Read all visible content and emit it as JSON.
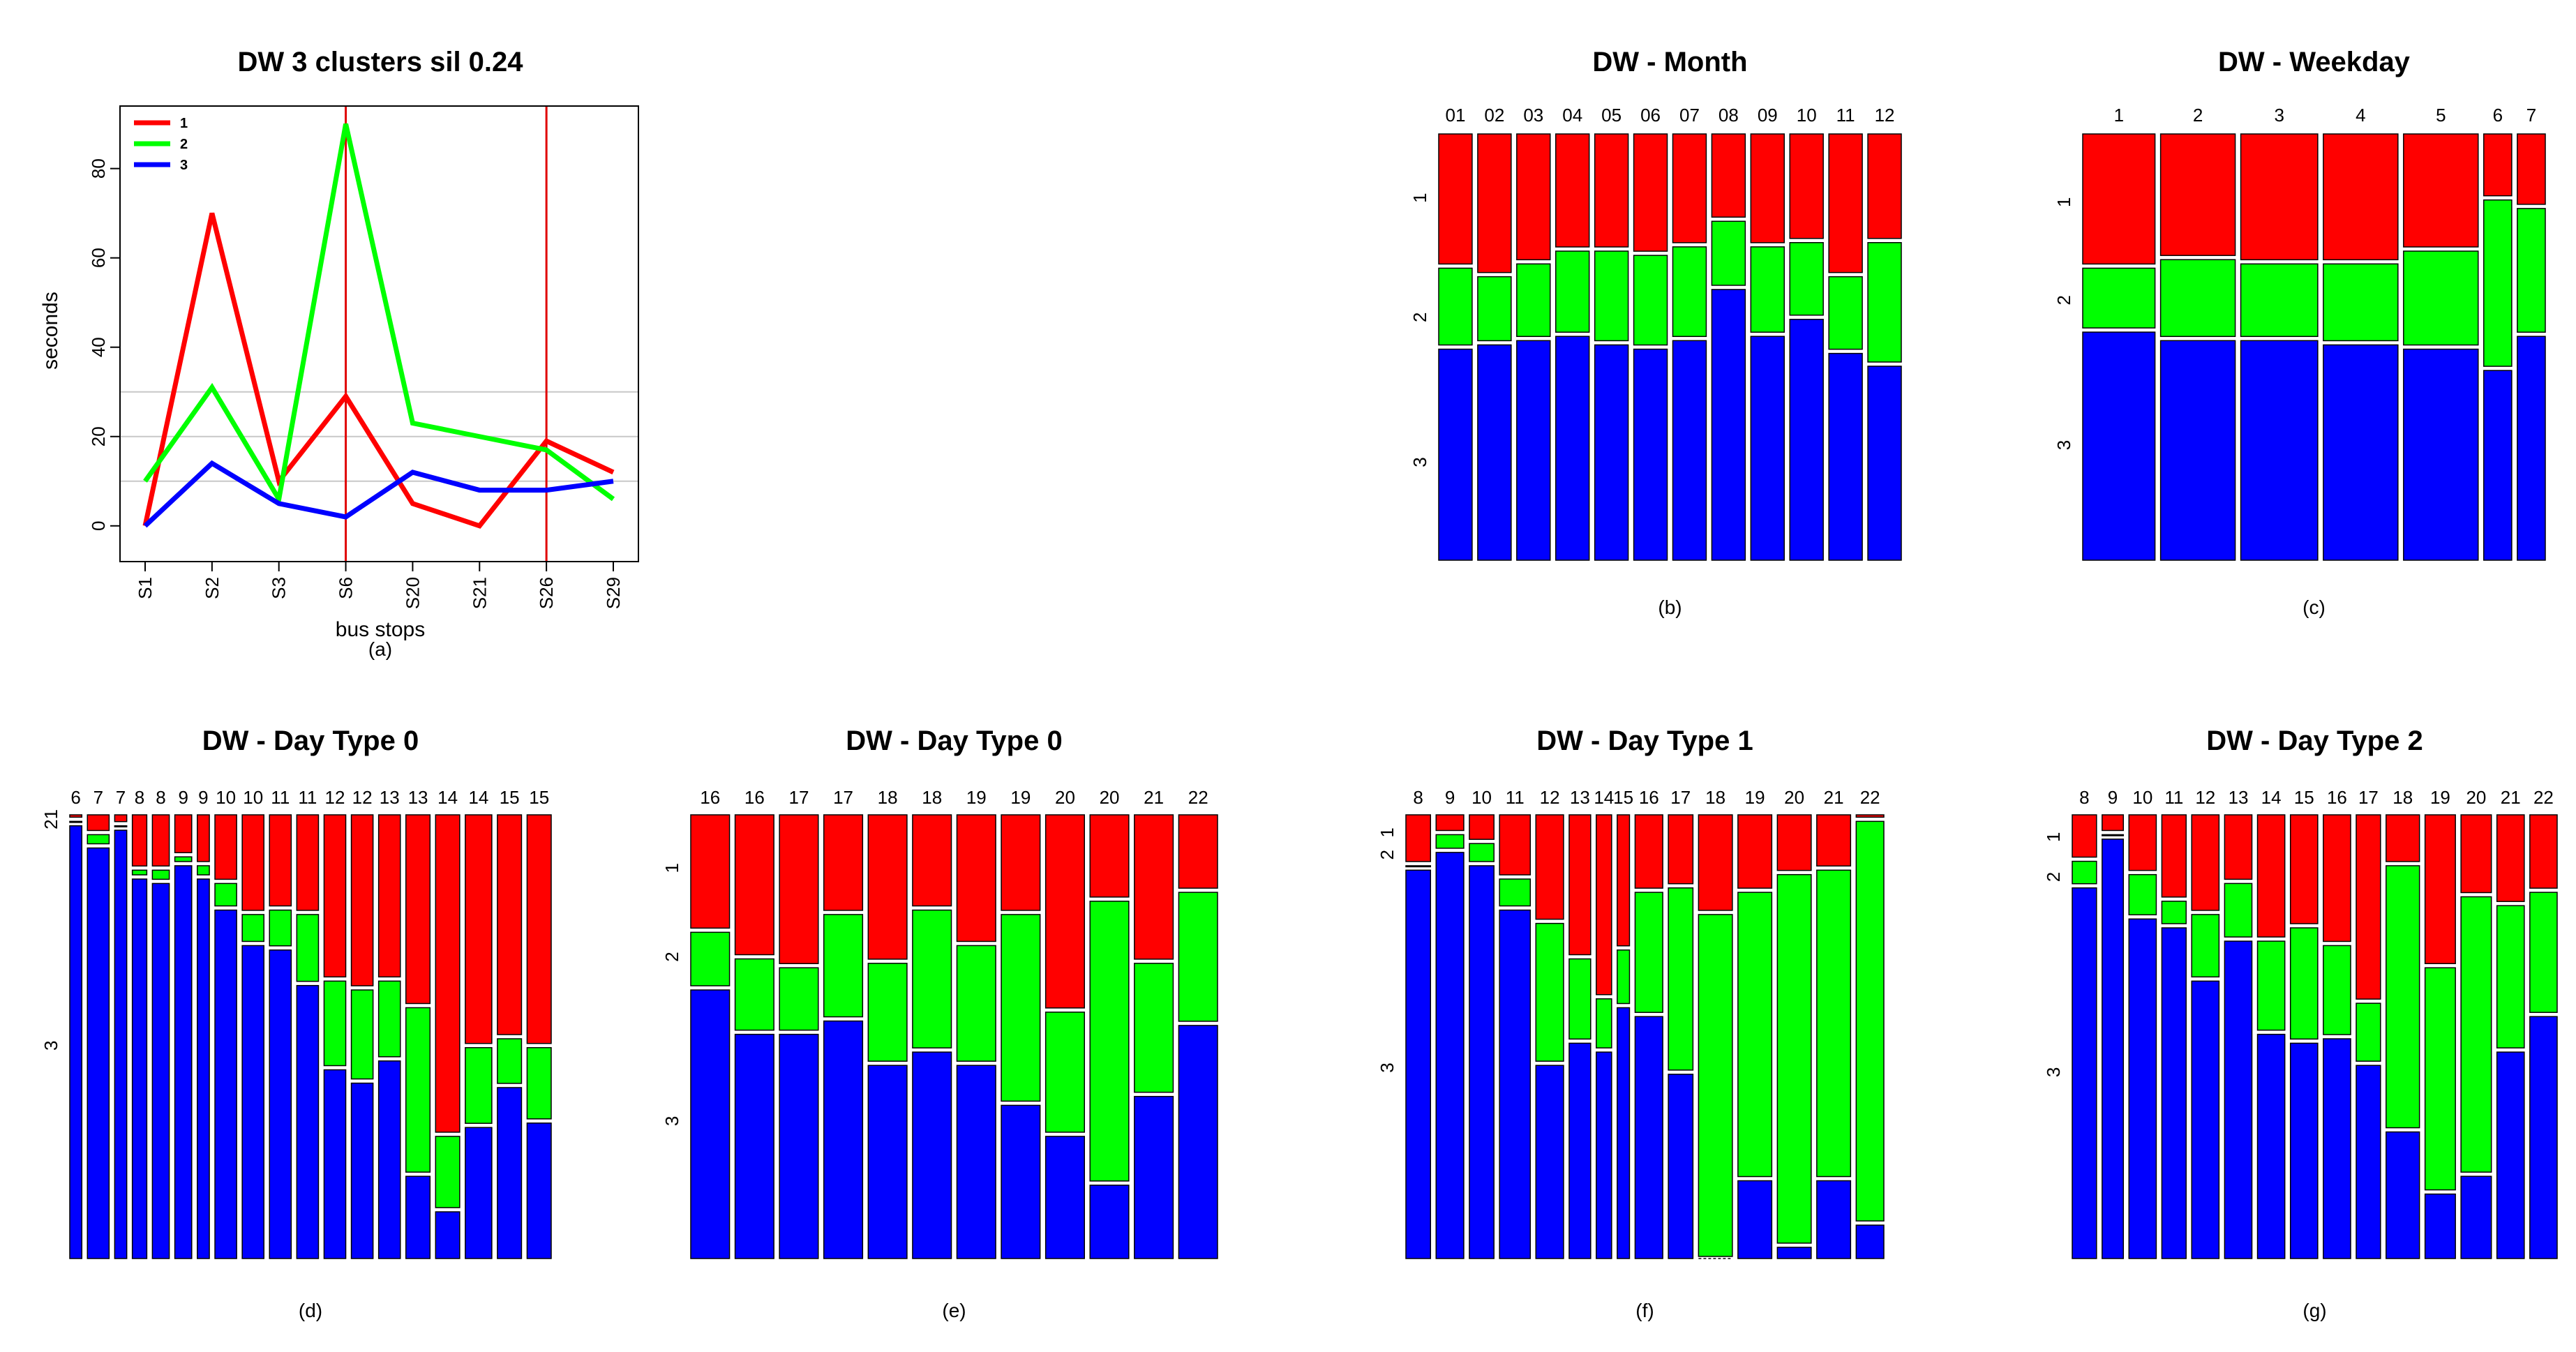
{
  "colors": {
    "c1": "#ff0000",
    "c2": "#00ff00",
    "c3": "#0000ff",
    "grid": "#c8c8c8",
    "vline": "#e00000"
  },
  "line_panel": {
    "title": "DW 3 clusters sil 0.24",
    "ylabel": "seconds",
    "xlabel": "bus stops",
    "caption": "(a)",
    "legend": [
      "1",
      "2",
      "3"
    ]
  },
  "chart_data": [
    {
      "type": "line",
      "title": "DW 3 clusters sil 0.24",
      "xlabel": "bus stops",
      "ylabel": "seconds",
      "categories": [
        "S1",
        "S2",
        "S3",
        "S6",
        "S20",
        "S21",
        "S26",
        "S29"
      ],
      "ylim": [
        -8,
        94
      ],
      "yticks": [
        0,
        20,
        40,
        60,
        80
      ],
      "hlines": [
        10,
        20,
        30
      ],
      "vlines": [
        "S6",
        "S26"
      ],
      "series": [
        {
          "name": "1",
          "values": [
            0,
            70,
            10,
            29,
            5,
            0,
            19,
            12
          ]
        },
        {
          "name": "2",
          "values": [
            10,
            31,
            6,
            90,
            23,
            20,
            17,
            6
          ]
        },
        {
          "name": "3",
          "values": [
            0,
            14,
            5,
            2,
            12,
            8,
            8,
            10
          ]
        }
      ]
    },
    {
      "type": "mosaic",
      "title": "DW - Month",
      "caption": "(b)",
      "categories": [
        "01",
        "02",
        "03",
        "04",
        "05",
        "06",
        "07",
        "08",
        "09",
        "10",
        "11",
        "12"
      ],
      "widths": [
        1,
        1,
        1,
        1,
        1,
        1,
        1,
        1,
        1,
        1,
        1,
        1
      ],
      "series": [
        {
          "name": "1",
          "values": [
            0.31,
            0.33,
            0.3,
            0.27,
            0.27,
            0.28,
            0.26,
            0.2,
            0.26,
            0.25,
            0.33,
            0.25
          ]
        },
        {
          "name": "2",
          "values": [
            0.19,
            0.16,
            0.18,
            0.2,
            0.22,
            0.22,
            0.22,
            0.16,
            0.21,
            0.18,
            0.18,
            0.29
          ]
        },
        {
          "name": "3",
          "values": [
            0.5,
            0.51,
            0.52,
            0.53,
            0.51,
            0.5,
            0.52,
            0.64,
            0.53,
            0.57,
            0.49,
            0.46
          ]
        }
      ],
      "ylabels": [
        {
          "text": "1",
          "pos": 0.85
        },
        {
          "text": "2",
          "pos": 0.57
        },
        {
          "text": "3",
          "pos": 0.23
        }
      ]
    },
    {
      "type": "mosaic",
      "title": "DW - Weekday",
      "caption": "(c)",
      "categories": [
        "1",
        "2",
        "3",
        "4",
        "5",
        "6",
        "7"
      ],
      "widths": [
        1.55,
        1.6,
        1.65,
        1.6,
        1.6,
        0.6,
        0.6
      ],
      "series": [
        {
          "name": "1",
          "values": [
            0.31,
            0.29,
            0.3,
            0.3,
            0.27,
            0.15,
            0.17
          ]
        },
        {
          "name": "2",
          "values": [
            0.15,
            0.19,
            0.18,
            0.19,
            0.23,
            0.4,
            0.3
          ]
        },
        {
          "name": "3",
          "values": [
            0.54,
            0.52,
            0.52,
            0.51,
            0.5,
            0.45,
            0.53
          ]
        }
      ],
      "ylabels": [
        {
          "text": "1",
          "pos": 0.84
        },
        {
          "text": "2",
          "pos": 0.61
        },
        {
          "text": "3",
          "pos": 0.27
        }
      ]
    },
    {
      "type": "mosaic",
      "title": "DW - Day Type 0",
      "caption": "(d)",
      "categories": [
        "6",
        "7",
        "7",
        "8",
        "8",
        "9",
        "9",
        "10",
        "10",
        "11",
        "11",
        "12",
        "12",
        "13",
        "13",
        "14",
        "14",
        "15",
        "15"
      ],
      "widths": [
        0.5,
        0.9,
        0.5,
        0.6,
        0.7,
        0.7,
        0.5,
        0.9,
        0.9,
        0.9,
        0.9,
        0.9,
        0.9,
        0.9,
        1.0,
        1.0,
        1.1,
        1.0,
        1.0
      ],
      "series": [
        {
          "name": "1",
          "values": [
            0.01,
            0.04,
            0.02,
            0.12,
            0.12,
            0.09,
            0.11,
            0.15,
            0.22,
            0.21,
            0.22,
            0.37,
            0.39,
            0.37,
            0.43,
            0.72,
            0.52,
            0.5,
            0.52
          ]
        },
        {
          "name": "2",
          "values": [
            0.01,
            0.03,
            0.01,
            0.02,
            0.03,
            0.02,
            0.03,
            0.06,
            0.07,
            0.09,
            0.16,
            0.2,
            0.21,
            0.18,
            0.38,
            0.17,
            0.18,
            0.11,
            0.17
          ]
        },
        {
          "name": "3",
          "values": [
            0.98,
            0.93,
            0.97,
            0.86,
            0.85,
            0.89,
            0.86,
            0.79,
            0.71,
            0.7,
            0.62,
            0.43,
            0.4,
            0.45,
            0.19,
            0.11,
            0.3,
            0.39,
            0.31
          ]
        }
      ],
      "ylabels": [
        {
          "text": "21",
          "pos": 0.99
        },
        {
          "text": "3",
          "pos": 0.48
        }
      ]
    },
    {
      "type": "mosaic",
      "title": "DW - Day Type 0",
      "caption": "(e)",
      "categories": [
        "16",
        "16",
        "17",
        "17",
        "18",
        "18",
        "19",
        "19",
        "20",
        "20",
        "21",
        "22"
      ],
      "widths": [
        1,
        1,
        1,
        1,
        1,
        1,
        1,
        1,
        1,
        1,
        1,
        1
      ],
      "series": [
        {
          "name": "1",
          "values": [
            0.26,
            0.32,
            0.34,
            0.22,
            0.33,
            0.21,
            0.29,
            0.22,
            0.44,
            0.19,
            0.33,
            0.17
          ]
        },
        {
          "name": "2",
          "values": [
            0.13,
            0.17,
            0.15,
            0.24,
            0.23,
            0.32,
            0.27,
            0.43,
            0.28,
            0.64,
            0.3,
            0.3
          ]
        },
        {
          "name": "3",
          "values": [
            0.61,
            0.51,
            0.51,
            0.54,
            0.44,
            0.47,
            0.44,
            0.35,
            0.28,
            0.17,
            0.37,
            0.53
          ]
        }
      ],
      "ylabels": [
        {
          "text": "1",
          "pos": 0.88
        },
        {
          "text": "2",
          "pos": 0.68
        },
        {
          "text": "3",
          "pos": 0.31
        }
      ]
    },
    {
      "type": "mosaic",
      "title": "DW - Day Type 1",
      "caption": "(f)",
      "categories": [
        "8",
        "9",
        "10",
        "11",
        "12",
        "13",
        "14",
        "15",
        "16",
        "17",
        "18",
        "19",
        "20",
        "21",
        "22"
      ],
      "widths": [
        0.8,
        0.9,
        0.8,
        1.0,
        0.9,
        0.7,
        0.5,
        0.4,
        0.9,
        0.8,
        1.1,
        1.1,
        1.1,
        1.1,
        0.9
      ],
      "series": [
        {
          "name": "1",
          "values": [
            0.11,
            0.04,
            0.06,
            0.14,
            0.24,
            0.32,
            0.41,
            0.3,
            0.17,
            0.16,
            0.22,
            0.17,
            0.13,
            0.12,
            0.01
          ]
        },
        {
          "name": "2",
          "values": [
            0.01,
            0.04,
            0.05,
            0.07,
            0.32,
            0.19,
            0.12,
            0.13,
            0.28,
            0.42,
            0.78,
            0.65,
            0.84,
            0.7,
            0.91
          ]
        },
        {
          "name": "3",
          "values": [
            0.88,
            0.92,
            0.89,
            0.79,
            0.44,
            0.49,
            0.47,
            0.57,
            0.55,
            0.42,
            0.0,
            0.18,
            0.03,
            0.18,
            0.08
          ]
        }
      ],
      "ylabels": [
        {
          "text": "1",
          "pos": 0.96
        },
        {
          "text": "2",
          "pos": 0.91
        },
        {
          "text": "3",
          "pos": 0.43
        }
      ]
    },
    {
      "type": "mosaic",
      "title": "DW - Day Type 2",
      "caption": "(g)",
      "categories": [
        "8",
        "9",
        "10",
        "11",
        "12",
        "13",
        "14",
        "15",
        "16",
        "17",
        "18",
        "19",
        "20",
        "21",
        "22"
      ],
      "widths": [
        0.8,
        0.7,
        0.9,
        0.8,
        0.9,
        0.9,
        0.9,
        0.9,
        0.9,
        0.8,
        1.1,
        1.0,
        1.0,
        0.9,
        0.9
      ],
      "series": [
        {
          "name": "1",
          "values": [
            0.1,
            0.04,
            0.13,
            0.19,
            0.22,
            0.15,
            0.28,
            0.25,
            0.29,
            0.42,
            0.11,
            0.34,
            0.18,
            0.2,
            0.17
          ]
        },
        {
          "name": "2",
          "values": [
            0.06,
            0.01,
            0.1,
            0.06,
            0.15,
            0.13,
            0.21,
            0.26,
            0.21,
            0.14,
            0.6,
            0.51,
            0.63,
            0.33,
            0.28
          ]
        },
        {
          "name": "3",
          "values": [
            0.84,
            0.95,
            0.77,
            0.75,
            0.63,
            0.72,
            0.51,
            0.49,
            0.5,
            0.44,
            0.29,
            0.15,
            0.19,
            0.47,
            0.55
          ]
        }
      ],
      "ylabels": [
        {
          "text": "1",
          "pos": 0.95
        },
        {
          "text": "2",
          "pos": 0.86
        },
        {
          "text": "3",
          "pos": 0.42
        }
      ]
    }
  ]
}
